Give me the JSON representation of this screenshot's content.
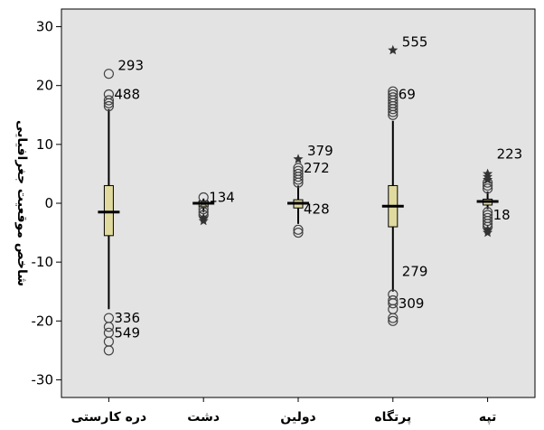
{
  "chart_data": {
    "type": "boxplot",
    "ylabel": "شاخص موقعیت جغرافیایی",
    "ylim": [
      -33,
      33
    ],
    "yticks": [
      30,
      20,
      10,
      0,
      -10,
      -20,
      -30
    ],
    "categories": [
      "دره کارستی",
      "دشت",
      "دولین",
      "پرتگاه",
      "تپه"
    ],
    "colors": {
      "plot_bg": "#e3e3e3",
      "box_fill": "#e0da9e",
      "frame": "#000000"
    },
    "boxes": [
      {
        "category": "دره کارستی",
        "q1": -5.5,
        "median": -1.5,
        "q3": 3,
        "whisker_low": -18,
        "whisker_high": 16
      },
      {
        "category": "دشت",
        "q1": -0.6,
        "median": 0,
        "q3": 0.4,
        "whisker_low": -1.5,
        "whisker_high": 0.8
      },
      {
        "category": "دولین",
        "q1": -0.8,
        "median": 0,
        "q3": 0.6,
        "whisker_low": -3.5,
        "whisker_high": 3
      },
      {
        "category": "پرتگاه",
        "q1": -4,
        "median": -0.5,
        "q3": 3,
        "whisker_low": -15,
        "whisker_high": 14
      },
      {
        "category": "تپه",
        "q1": -0.3,
        "median": 0.3,
        "q3": 0.7,
        "whisker_low": -1,
        "whisker_high": 2
      }
    ],
    "outliers": [
      {
        "category": "دره کارستی",
        "values": [
          22,
          18.5,
          17.5,
          17,
          16.5,
          -19.5,
          -21,
          -22,
          -23.5,
          -25
        ],
        "extremes": []
      },
      {
        "category": "دشت",
        "values": [
          1,
          -1,
          -1.5,
          -2
        ],
        "extremes": [
          -2.5,
          -3
        ]
      },
      {
        "category": "دولین",
        "values": [
          6,
          5.5,
          5,
          4.5,
          4,
          3.5,
          -4.5,
          -5
        ],
        "extremes": [
          7.5
        ]
      },
      {
        "category": "پرتگاه",
        "values": [
          19,
          18.5,
          18,
          17.5,
          17,
          16.5,
          16,
          15.5,
          15,
          -15.5,
          -16.5,
          -17,
          -18,
          -19.5,
          -20
        ],
        "extremes": [
          26
        ]
      },
      {
        "category": "تپه",
        "values": [
          3.5,
          3,
          2.5,
          -1.5,
          -2,
          -2.5,
          -3,
          -3.5,
          -4
        ],
        "extremes": [
          5,
          4.5,
          4,
          -4.5,
          -5
        ]
      }
    ],
    "point_labels": [
      {
        "category": "دره کارستی",
        "y": 22,
        "text": "293",
        "side": "upper"
      },
      {
        "category": "دره کارستی",
        "y": 18.5,
        "text": "488",
        "side": "mid"
      },
      {
        "category": "دره کارستی",
        "y": -19.5,
        "text": "336",
        "side": "mid"
      },
      {
        "category": "دره کارستی",
        "y": -22,
        "text": "549",
        "side": "mid"
      },
      {
        "category": "دشت",
        "y": 1,
        "text": "134",
        "side": "mid"
      },
      {
        "category": "دولین",
        "y": 7.5,
        "text": "379",
        "side": "upper"
      },
      {
        "category": "دولین",
        "y": 6,
        "text": "272",
        "side": "mid"
      },
      {
        "category": "دولین",
        "y": -1,
        "text": "428",
        "side": "mid"
      },
      {
        "category": "پرتگاه",
        "y": 26,
        "text": "555",
        "side": "upper"
      },
      {
        "category": "پرتگاه",
        "y": 18.5,
        "text": "69",
        "side": "mid"
      },
      {
        "category": "پرتگاه",
        "y": -13,
        "text": "279",
        "side": "upper"
      },
      {
        "category": "پرتگاه",
        "y": -17,
        "text": "309",
        "side": "mid"
      },
      {
        "category": "تپه",
        "y": 7,
        "text": "223",
        "side": "upper"
      },
      {
        "category": "تپه",
        "y": -2,
        "text": "18",
        "side": "mid"
      }
    ]
  }
}
